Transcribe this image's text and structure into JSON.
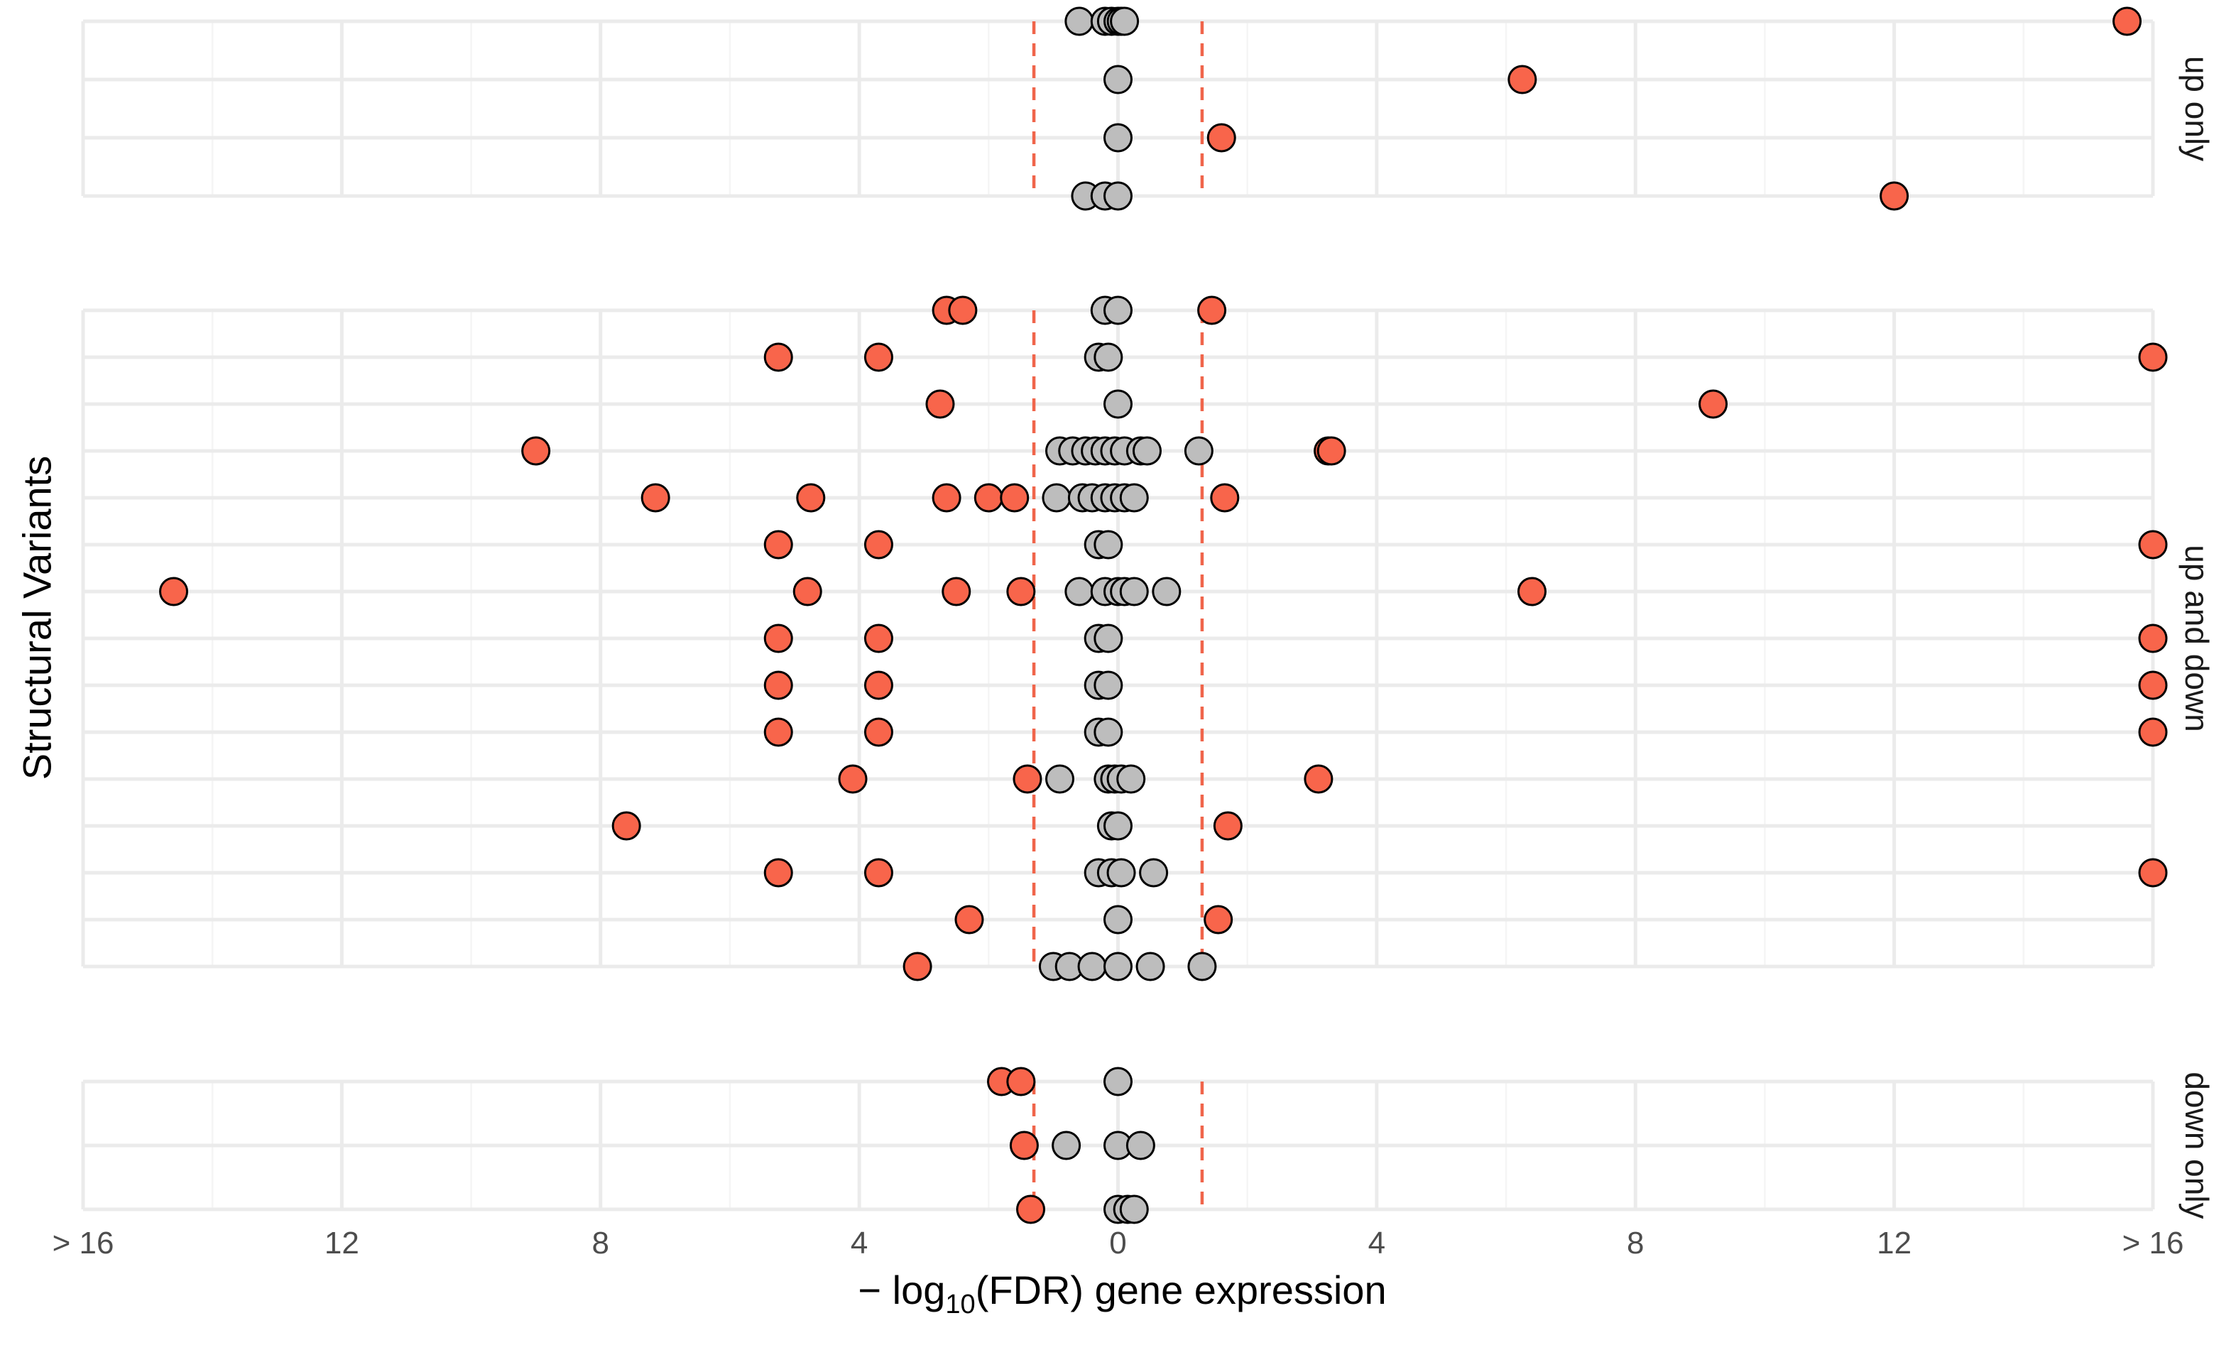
{
  "chart_data": {
    "type": "scatter",
    "ylabel": "Structural Variants",
    "xlabel_prefix": "− log",
    "xlabel_sub": "10",
    "xlabel_suffix": "(FDR) gene expression",
    "xlim": [
      -16,
      16
    ],
    "x_major_ticks": [
      {
        "value": -16,
        "label": "> 16"
      },
      {
        "value": -12,
        "label": "12"
      },
      {
        "value": -8,
        "label": "8"
      },
      {
        "value": -4,
        "label": "4"
      },
      {
        "value": 0,
        "label": "0"
      },
      {
        "value": 4,
        "label": "4"
      },
      {
        "value": 8,
        "label": "8"
      },
      {
        "value": 12,
        "label": "12"
      },
      {
        "value": 16,
        "label": "> 16"
      }
    ],
    "x_minor_ticks": [
      -14,
      -10,
      -6,
      -2,
      2,
      6,
      10,
      14
    ],
    "significance_threshold": 1.3,
    "grid": true,
    "colors": {
      "significant": "#F8654B",
      "not_significant": "#BDBDBD",
      "point_stroke": "#000000",
      "threshold_line": "#F0654B",
      "grid_major": "#EBEBEB",
      "grid_minor": "#F5F5F5",
      "tick_text": "#4D4D4D",
      "axis_title": "#000000"
    },
    "panels": [
      {
        "strip_label": "up only",
        "rows": [
          [
            -0.6,
            -0.2,
            -0.1,
            0,
            0.05,
            0.1,
            15.6
          ],
          [
            0,
            6.25
          ],
          [
            0,
            1.6
          ],
          [
            -0.5,
            -0.2,
            0,
            12
          ]
        ]
      },
      {
        "strip_label": "up and down",
        "rows": [
          [
            -2.65,
            -2.4,
            -0.2,
            0,
            1.45
          ],
          [
            -5.25,
            -3.7,
            -0.3,
            -0.15,
            16
          ],
          [
            -2.75,
            0,
            9.2
          ],
          [
            -9,
            -0.9,
            -0.7,
            -0.5,
            -0.35,
            -0.2,
            -0.05,
            0.1,
            0.35,
            0.45,
            1.25,
            3.25,
            3.3
          ],
          [
            -7.15,
            -4.75,
            -2.65,
            -2,
            -1.6,
            -0.95,
            -0.55,
            -0.4,
            -0.2,
            -0.05,
            0.1,
            0.25,
            1.65
          ],
          [
            -5.25,
            -3.7,
            -0.3,
            -0.15,
            16
          ],
          [
            -14.6,
            -4.8,
            -2.5,
            -1.5,
            -0.6,
            -0.2,
            0,
            0.1,
            0.25,
            0.75,
            6.4
          ],
          [
            -5.25,
            -3.7,
            -0.3,
            -0.15,
            16
          ],
          [
            -5.25,
            -3.7,
            -0.3,
            -0.15,
            16
          ],
          [
            -5.25,
            -3.7,
            -0.3,
            -0.15,
            16
          ],
          [
            -4.1,
            -1.4,
            -0.9,
            -0.15,
            -0.05,
            0.05,
            0.2,
            3.1
          ],
          [
            -7.6,
            -0.1,
            0,
            1.7
          ],
          [
            -5.25,
            -3.7,
            -0.3,
            -0.1,
            0.05,
            0.55,
            16
          ],
          [
            -2.3,
            0,
            1.55
          ],
          [
            -3.1,
            -1,
            -0.75,
            -0.4,
            0,
            0.5,
            1.3
          ]
        ]
      },
      {
        "strip_label": "down only",
        "rows": [
          [
            -1.8,
            -1.5,
            0
          ],
          [
            -1.45,
            -0.8,
            0,
            0.35
          ],
          [
            -1.35,
            0,
            0.15,
            0.25
          ]
        ]
      }
    ]
  }
}
